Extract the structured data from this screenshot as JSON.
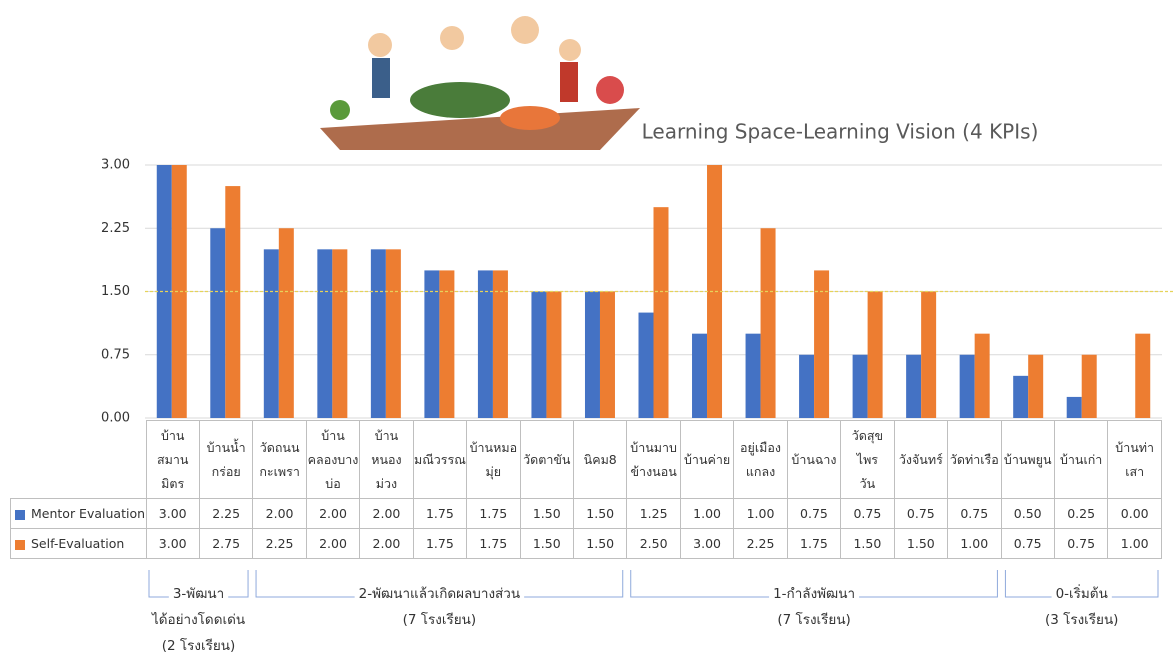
{
  "chart_data": {
    "type": "bar",
    "title": "Learning Space-Learning Vision (4 KPIs)",
    "categories": [
      "บ้าน\nสมาน\nมิตร",
      "บ้านน้ำ\nกร่อย",
      "วัดถนน\nกะเพรา",
      "บ้าน\nคลองบาง\nบ่อ",
      "บ้าน\nหนอง\nม่วง",
      "มณีวรรณ",
      "บ้านหมอ\nมุ่ย",
      "วัดตาขัน",
      "นิคม8",
      "บ้านมาบ\nข้างนอน",
      "บ้านค่าย",
      "อยู่เมือง\nแกลง",
      "บ้านฉาง",
      "วัดสุขไพร\nวัน",
      "วังจันทร์",
      "วัดท่าเรือ",
      "บ้านพยูน",
      "บ้านเก่า",
      "บ้านท่า\nเสา"
    ],
    "series": [
      {
        "name": "Mentor Evaluation",
        "color": "#4472c4",
        "values": [
          3,
          2.25,
          2,
          2,
          2,
          1.75,
          1.75,
          1.5,
          1.5,
          1.25,
          1,
          1,
          0.75,
          0.75,
          0.75,
          0.75,
          0.5,
          0.25,
          0
        ],
        "value_labels": [
          "3.00",
          "2.25",
          "2.00",
          "2.00",
          "2.00",
          "1.75",
          "1.75",
          "1.50",
          "1.50",
          "1.25",
          "1.00",
          "1.00",
          "0.75",
          "0.75",
          "0.75",
          "0.75",
          "0.50",
          "0.25",
          "0.00"
        ]
      },
      {
        "name": "Self-Evaluation",
        "color": "#ed7d31",
        "values": [
          3,
          2.75,
          2.25,
          2,
          2,
          1.75,
          1.75,
          1.5,
          1.5,
          2.5,
          3,
          2.25,
          1.75,
          1.5,
          1.5,
          1,
          0.75,
          0.75,
          1
        ],
        "value_labels": [
          "3.00",
          "2.75",
          "2.25",
          "2.00",
          "2.00",
          "1.75",
          "1.75",
          "1.50",
          "1.50",
          "2.50",
          "3.00",
          "2.25",
          "1.75",
          "1.50",
          "1.50",
          "1.00",
          "0.75",
          "0.75",
          "1.00"
        ]
      }
    ],
    "ylim": [
      0,
      3
    ],
    "yticks": [
      {
        "value": 0,
        "label": "0.00"
      },
      {
        "value": 0.75,
        "label": "0.75"
      },
      {
        "value": 1.5,
        "label": "1.50"
      },
      {
        "value": 2.25,
        "label": "2.25"
      },
      {
        "value": 3,
        "label": "3.00"
      }
    ],
    "grid": true,
    "reference_line": 1.5,
    "groups": [
      {
        "lines": [
          "3-พัฒนา",
          "ได้อย่างโดดเด่น",
          "(2 โรงเรียน)"
        ]
      },
      {
        "lines": [
          "2-พัฒนาแล้วเกิดผลบางส่วน",
          "(7 โรงเรียน)"
        ]
      },
      {
        "lines": [
          "1-กำลังพัฒนา",
          "(7 โรงเรียน)"
        ]
      },
      {
        "lines": [
          "0-เริ่มต้น",
          "(3 โรงเรียน)"
        ]
      }
    ]
  }
}
